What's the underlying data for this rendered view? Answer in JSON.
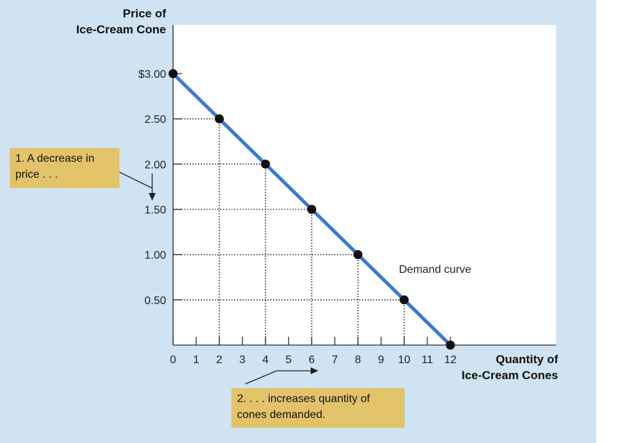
{
  "chart_data": {
    "type": "line",
    "title": "",
    "ylabel": [
      "Price of",
      "Ice-Cream Cone"
    ],
    "xlabel": [
      "Quantity of",
      "Ice-Cream Cones"
    ],
    "x_ticks": [
      "0",
      "1",
      "2",
      "3",
      "4",
      "5",
      "6",
      "7",
      "8",
      "9",
      "10",
      "11",
      "12"
    ],
    "y_ticks": [
      "$3.00",
      "2.50",
      "2.00",
      "1.50",
      "1.00",
      "0.50"
    ],
    "y_tick_values": [
      3.0,
      2.5,
      2.0,
      1.5,
      1.0,
      0.5
    ],
    "xlim": [
      0,
      12
    ],
    "ylim": [
      0,
      3.0
    ],
    "series": [
      {
        "name": "Demand curve",
        "x": [
          0,
          2,
          4,
          6,
          8,
          10,
          12
        ],
        "y": [
          3.0,
          2.5,
          2.0,
          1.5,
          1.0,
          0.5,
          0.0
        ]
      }
    ],
    "line_color": "#3a78d4",
    "point_color": "#111111",
    "grid": "dotted guide lines from each point to the axes"
  },
  "annotations": {
    "curve_label": "Demand curve",
    "callout_price": [
      "1. A decrease in",
      "price . . ."
    ],
    "callout_quantity": [
      "2. . . . increases quantity of",
      "cones demanded."
    ]
  },
  "colors": {
    "background": "#cfe3f2",
    "callout": "#e3c36a"
  }
}
